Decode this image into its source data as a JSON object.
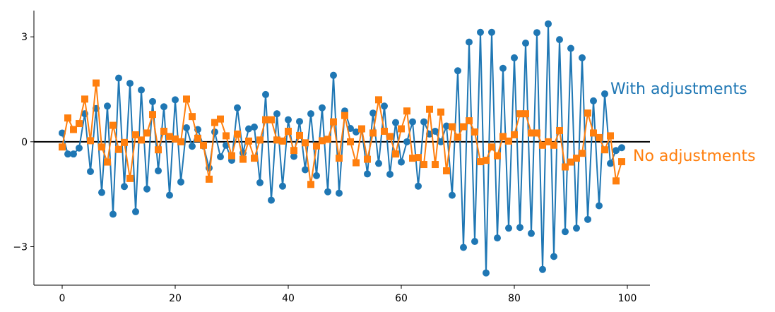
{
  "chart_data": {
    "type": "line",
    "title": "",
    "xlabel": "",
    "ylabel": "",
    "xlim": [
      -5,
      104
    ],
    "ylim": [
      -4.1,
      3.75
    ],
    "xticks": [
      0,
      20,
      40,
      60,
      80,
      100
    ],
    "xtick_labels": [
      "0",
      "20",
      "40",
      "60",
      "80",
      "100"
    ],
    "yticks": [
      -3,
      0,
      3
    ],
    "ytick_labels": [
      "−3",
      "0",
      "3"
    ],
    "zero_line": true,
    "grid": false,
    "legend": "none (series labelled inline at right end)",
    "x": [
      0,
      1,
      2,
      3,
      4,
      5,
      6,
      7,
      8,
      9,
      10,
      11,
      12,
      13,
      14,
      15,
      16,
      17,
      18,
      19,
      20,
      21,
      22,
      23,
      24,
      25,
      26,
      27,
      28,
      29,
      30,
      31,
      32,
      33,
      34,
      35,
      36,
      37,
      38,
      39,
      40,
      41,
      42,
      43,
      44,
      45,
      46,
      47,
      48,
      49,
      50,
      51,
      52,
      53,
      54,
      55,
      56,
      57,
      58,
      59,
      60,
      61,
      62,
      63,
      64,
      65,
      66,
      67,
      68,
      69,
      70,
      71,
      72,
      73,
      74,
      75,
      76,
      77,
      78,
      79,
      80,
      81,
      82,
      83,
      84,
      85,
      86,
      87,
      88,
      89,
      90,
      91,
      92,
      93,
      94,
      95,
      96,
      97,
      98,
      99
    ],
    "series": [
      {
        "name": "With adjustments",
        "color": "#1f77b4",
        "marker": "circle",
        "values": [
          0.25,
          -0.35,
          -0.35,
          -0.18,
          0.8,
          -0.85,
          0.95,
          -1.45,
          1.02,
          -2.07,
          1.82,
          -1.28,
          1.67,
          -2.0,
          1.48,
          -1.35,
          1.15,
          -0.83,
          1.0,
          -1.53,
          1.2,
          -1.15,
          0.4,
          -0.13,
          0.35,
          -0.12,
          -0.75,
          0.28,
          -0.43,
          -0.1,
          -0.53,
          0.97,
          -0.32,
          0.37,
          0.42,
          -1.17,
          1.35,
          -1.67,
          0.8,
          -1.27,
          0.63,
          -0.42,
          0.58,
          -0.8,
          0.8,
          -0.97,
          0.97,
          -1.43,
          1.9,
          -1.47,
          0.88,
          0.38,
          0.28,
          0.35,
          -0.92,
          0.82,
          -0.62,
          1.02,
          -0.93,
          0.55,
          -0.58,
          0.0,
          0.57,
          -1.27,
          0.57,
          0.22,
          0.3,
          0.0,
          0.45,
          -1.53,
          2.03,
          -3.02,
          2.85,
          -2.85,
          3.13,
          -3.75,
          3.13,
          -2.75,
          2.1,
          -2.47,
          2.4,
          -2.45,
          2.82,
          -2.62,
          3.12,
          -3.65,
          3.37,
          -3.28,
          2.92,
          -2.57,
          2.67,
          -2.47,
          2.4,
          -2.22,
          1.17,
          -1.83,
          1.37,
          -0.62,
          -0.25,
          -0.17
        ]
      },
      {
        "name": "No adjustments",
        "color": "#ff7f0e",
        "marker": "square",
        "values": [
          -0.15,
          0.68,
          0.35,
          0.52,
          1.22,
          0.03,
          1.68,
          -0.15,
          -0.58,
          0.47,
          -0.22,
          -0.02,
          -1.05,
          0.2,
          0.05,
          0.25,
          0.78,
          -0.23,
          0.3,
          0.15,
          0.08,
          0.0,
          1.22,
          0.72,
          0.1,
          -0.1,
          -1.07,
          0.55,
          0.65,
          0.17,
          -0.4,
          0.22,
          -0.5,
          0.02,
          -0.47,
          0.05,
          0.63,
          0.63,
          0.05,
          0.02,
          0.3,
          -0.25,
          0.18,
          -0.03,
          -1.22,
          -0.12,
          0.03,
          0.07,
          0.57,
          -0.47,
          0.75,
          0.0,
          -0.6,
          0.37,
          -0.5,
          0.25,
          1.2,
          0.3,
          0.15,
          -0.35,
          0.37,
          0.88,
          -0.47,
          -0.45,
          -0.65,
          0.93,
          -0.65,
          0.85,
          -0.83,
          0.43,
          0.13,
          0.43,
          0.6,
          0.28,
          -0.57,
          -0.53,
          -0.15,
          -0.4,
          0.15,
          0.02,
          0.2,
          0.8,
          0.8,
          0.25,
          0.25,
          -0.1,
          0.0,
          -0.1,
          0.32,
          -0.72,
          -0.58,
          -0.47,
          -0.33,
          0.82,
          0.25,
          0.12,
          -0.23,
          0.17,
          -1.12,
          -0.57
        ]
      }
    ],
    "annotations": [
      {
        "text": "With adjustments",
        "series": "With adjustments"
      },
      {
        "text": "No adjustments",
        "series": "No adjustments"
      }
    ]
  }
}
